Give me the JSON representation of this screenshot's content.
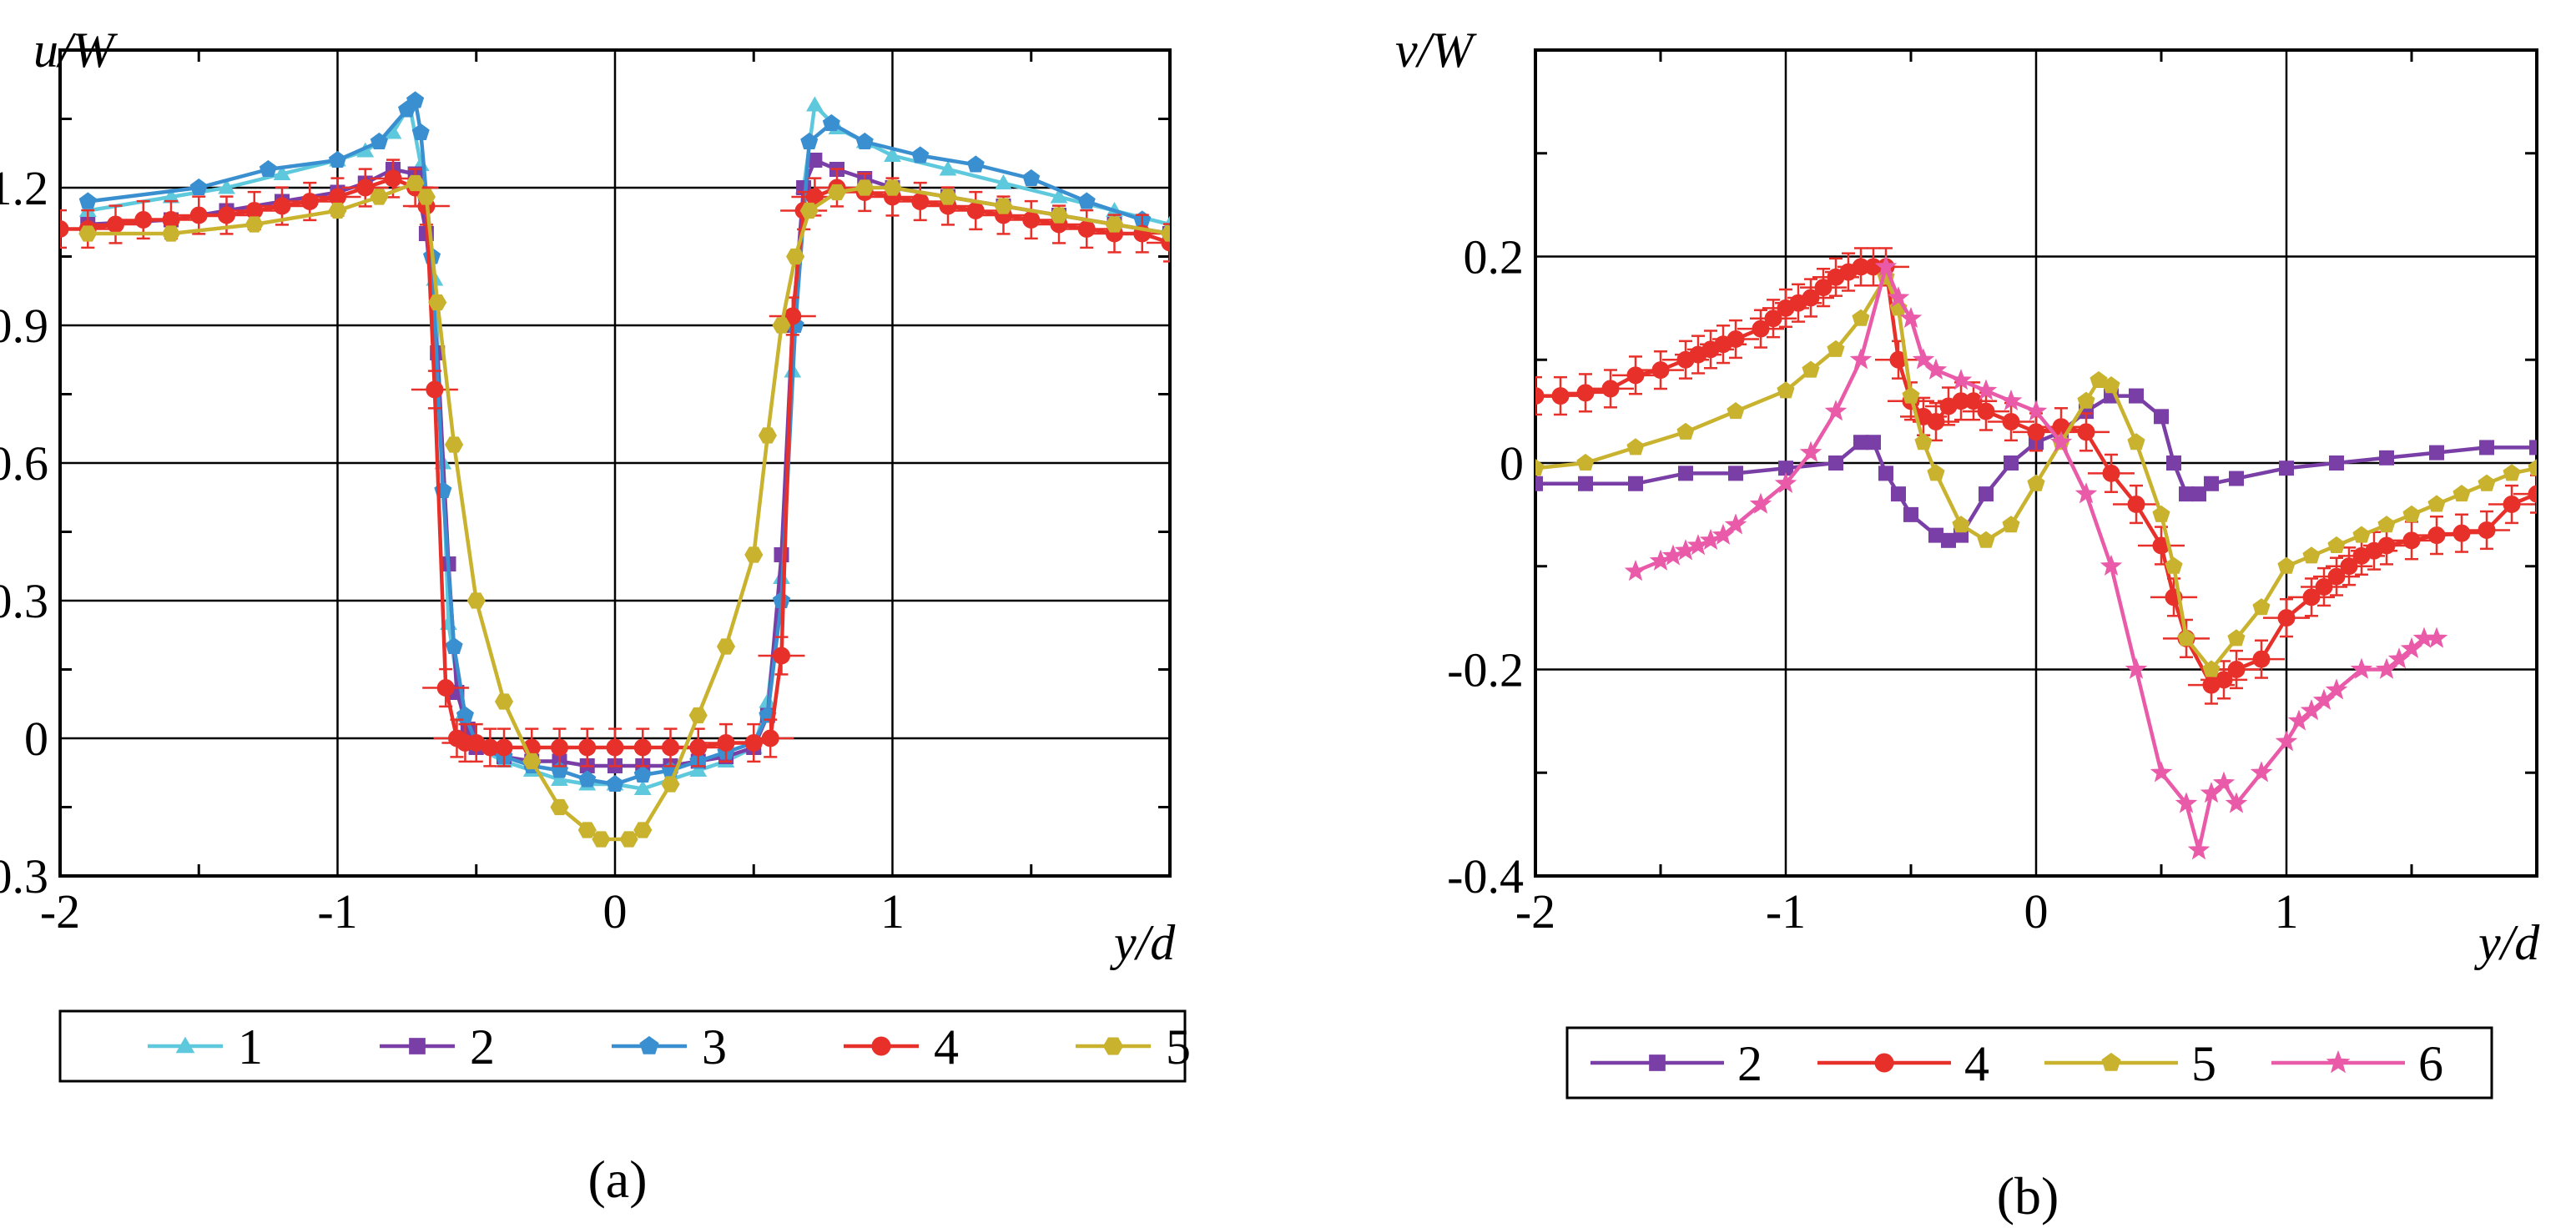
{
  "chart_data": [
    {
      "id": "a",
      "type": "line",
      "panel_label": "(a)",
      "ylabel": "u/W",
      "xlabel": "y/d",
      "xlim": [
        -2,
        2
      ],
      "ylim": [
        -0.3,
        1.5
      ],
      "xticks": [
        -2,
        -1,
        0,
        1
      ],
      "xtick_labels": [
        "-2",
        "-1",
        "0",
        "1"
      ],
      "yticks": [
        -0.3,
        0,
        0.3,
        0.6,
        0.9,
        1.2
      ],
      "ytick_labels": [
        "-0.3",
        "0",
        "0.3",
        "0.6",
        "0.9",
        "1.2"
      ],
      "grid": true,
      "legend_position": "bottom",
      "series": [
        {
          "name": "1",
          "color": "#5ec9dd",
          "marker": "triangle",
          "x": [
            -1.9,
            -1.6,
            -1.4,
            -1.2,
            -1.0,
            -0.9,
            -0.8,
            -0.74,
            -0.7,
            -0.65,
            -0.62,
            -0.6,
            -0.55,
            -0.5,
            -0.4,
            -0.3,
            -0.2,
            -0.1,
            0.0,
            0.1,
            0.2,
            0.3,
            0.4,
            0.5,
            0.55,
            0.6,
            0.64,
            0.68,
            0.72,
            0.8,
            0.9,
            1.0,
            1.2,
            1.4,
            1.6,
            1.8,
            2.0
          ],
          "y": [
            1.15,
            1.18,
            1.2,
            1.23,
            1.26,
            1.28,
            1.32,
            1.38,
            1.25,
            1.0,
            0.6,
            0.25,
            0.05,
            -0.02,
            -0.05,
            -0.07,
            -0.09,
            -0.1,
            -0.1,
            -0.11,
            -0.09,
            -0.07,
            -0.05,
            -0.02,
            0.08,
            0.35,
            0.8,
            1.2,
            1.38,
            1.33,
            1.3,
            1.27,
            1.24,
            1.21,
            1.18,
            1.15,
            1.12
          ]
        },
        {
          "name": "2",
          "color": "#7a3fa6",
          "marker": "square",
          "x": [
            -1.9,
            -1.6,
            -1.4,
            -1.2,
            -1.0,
            -0.9,
            -0.8,
            -0.72,
            -0.68,
            -0.64,
            -0.6,
            -0.57,
            -0.53,
            -0.5,
            -0.4,
            -0.3,
            -0.2,
            -0.1,
            0.0,
            0.1,
            0.2,
            0.3,
            0.4,
            0.5,
            0.55,
            0.6,
            0.64,
            0.68,
            0.72,
            0.8,
            0.9,
            1.0,
            1.2,
            1.4,
            1.6,
            1.8,
            2.0
          ],
          "y": [
            1.12,
            1.13,
            1.15,
            1.17,
            1.19,
            1.21,
            1.24,
            1.23,
            1.1,
            0.84,
            0.38,
            0.1,
            0.02,
            -0.02,
            -0.04,
            -0.05,
            -0.05,
            -0.06,
            -0.06,
            -0.06,
            -0.06,
            -0.05,
            -0.04,
            -0.02,
            0.05,
            0.4,
            0.9,
            1.2,
            1.26,
            1.24,
            1.22,
            1.2,
            1.18,
            1.16,
            1.14,
            1.12,
            1.1
          ]
        },
        {
          "name": "3",
          "color": "#3a8fd0",
          "marker": "pentagon",
          "x": [
            -1.9,
            -1.5,
            -1.25,
            -1.0,
            -0.85,
            -0.75,
            -0.72,
            -0.7,
            -0.66,
            -0.62,
            -0.58,
            -0.54,
            -0.5,
            -0.4,
            -0.3,
            -0.2,
            -0.1,
            0.0,
            0.1,
            0.2,
            0.3,
            0.4,
            0.5,
            0.55,
            0.6,
            0.65,
            0.7,
            0.78,
            0.9,
            1.1,
            1.3,
            1.5,
            1.7,
            1.9
          ],
          "y": [
            1.17,
            1.2,
            1.24,
            1.26,
            1.3,
            1.37,
            1.39,
            1.32,
            1.05,
            0.54,
            0.2,
            0.05,
            -0.01,
            -0.04,
            -0.06,
            -0.07,
            -0.09,
            -0.1,
            -0.08,
            -0.07,
            -0.05,
            -0.03,
            -0.01,
            0.05,
            0.3,
            0.9,
            1.3,
            1.34,
            1.3,
            1.27,
            1.25,
            1.22,
            1.17,
            1.13
          ]
        },
        {
          "name": "4",
          "color": "#e8302a",
          "marker": "circle",
          "error_bars": true,
          "x": [
            -2.0,
            -1.9,
            -1.8,
            -1.7,
            -1.6,
            -1.5,
            -1.4,
            -1.3,
            -1.2,
            -1.1,
            -1.0,
            -0.9,
            -0.8,
            -0.72,
            -0.68,
            -0.65,
            -0.61,
            -0.57,
            -0.54,
            -0.5,
            -0.45,
            -0.4,
            -0.3,
            -0.2,
            -0.1,
            0.0,
            0.1,
            0.2,
            0.3,
            0.4,
            0.5,
            0.56,
            0.6,
            0.64,
            0.68,
            0.72,
            0.8,
            0.9,
            1.0,
            1.1,
            1.2,
            1.3,
            1.4,
            1.5,
            1.6,
            1.7,
            1.8,
            1.9,
            2.0
          ],
          "y": [
            1.11,
            1.11,
            1.12,
            1.13,
            1.13,
            1.14,
            1.14,
            1.15,
            1.16,
            1.17,
            1.18,
            1.2,
            1.22,
            1.2,
            1.16,
            0.76,
            0.11,
            0.0,
            -0.01,
            -0.01,
            -0.02,
            -0.02,
            -0.02,
            -0.02,
            -0.02,
            -0.02,
            -0.02,
            -0.02,
            -0.02,
            -0.01,
            -0.01,
            0.0,
            0.18,
            0.92,
            1.15,
            1.18,
            1.2,
            1.19,
            1.18,
            1.17,
            1.16,
            1.15,
            1.14,
            1.13,
            1.12,
            1.11,
            1.1,
            1.1,
            1.08
          ]
        },
        {
          "name": "5",
          "color": "#c8b22e",
          "marker": "hexagon",
          "x": [
            -1.9,
            -1.6,
            -1.3,
            -1.0,
            -0.85,
            -0.72,
            -0.68,
            -0.64,
            -0.58,
            -0.5,
            -0.4,
            -0.3,
            -0.2,
            -0.1,
            -0.05,
            0.05,
            0.1,
            0.2,
            0.3,
            0.4,
            0.5,
            0.55,
            0.6,
            0.65,
            0.7,
            0.8,
            0.9,
            1.0,
            1.2,
            1.4,
            1.6,
            1.8,
            2.0
          ],
          "y": [
            1.1,
            1.1,
            1.12,
            1.15,
            1.18,
            1.21,
            1.18,
            0.95,
            0.64,
            0.3,
            0.08,
            -0.05,
            -0.15,
            -0.2,
            -0.22,
            -0.22,
            -0.2,
            -0.1,
            0.05,
            0.2,
            0.4,
            0.66,
            0.9,
            1.05,
            1.15,
            1.19,
            1.2,
            1.2,
            1.18,
            1.16,
            1.14,
            1.12,
            1.1
          ]
        }
      ]
    },
    {
      "id": "b",
      "type": "line",
      "panel_label": "(b)",
      "ylabel": "v/W",
      "xlabel": "y/d",
      "xlim": [
        -2,
        2
      ],
      "ylim": [
        -0.4,
        0.4
      ],
      "xticks": [
        -2,
        -1,
        0,
        1
      ],
      "xtick_labels": [
        "-2",
        "-1",
        "0",
        "1"
      ],
      "yticks": [
        -0.4,
        -0.2,
        0,
        0.2
      ],
      "ytick_labels": [
        "-0.4",
        "-0.2",
        "0",
        "0.2"
      ],
      "grid": true,
      "legend_position": "bottom",
      "series": [
        {
          "name": "2",
          "color": "#7a3fa6",
          "marker": "square",
          "x": [
            -2.0,
            -1.8,
            -1.6,
            -1.4,
            -1.2,
            -1.0,
            -0.8,
            -0.7,
            -0.65,
            -0.6,
            -0.55,
            -0.5,
            -0.4,
            -0.35,
            -0.3,
            -0.2,
            -0.1,
            0.0,
            0.1,
            0.2,
            0.3,
            0.4,
            0.5,
            0.55,
            0.6,
            0.65,
            0.7,
            0.8,
            1.0,
            1.2,
            1.4,
            1.6,
            1.8,
            2.0
          ],
          "y": [
            -0.02,
            -0.02,
            -0.02,
            -0.01,
            -0.01,
            -0.005,
            0.0,
            0.02,
            0.02,
            -0.01,
            -0.03,
            -0.05,
            -0.07,
            -0.075,
            -0.07,
            -0.03,
            0.0,
            0.02,
            0.03,
            0.05,
            0.065,
            0.065,
            0.045,
            0.0,
            -0.03,
            -0.03,
            -0.02,
            -0.015,
            -0.005,
            0.0,
            0.005,
            0.01,
            0.015,
            0.015
          ]
        },
        {
          "name": "4",
          "color": "#e8302a",
          "marker": "circle",
          "error_bars": true,
          "x": [
            -2.0,
            -1.9,
            -1.8,
            -1.7,
            -1.6,
            -1.5,
            -1.4,
            -1.35,
            -1.3,
            -1.25,
            -1.2,
            -1.1,
            -1.05,
            -1.0,
            -0.95,
            -0.9,
            -0.85,
            -0.8,
            -0.75,
            -0.7,
            -0.65,
            -0.6,
            -0.55,
            -0.5,
            -0.45,
            -0.4,
            -0.35,
            -0.3,
            -0.25,
            -0.2,
            -0.1,
            0.0,
            0.1,
            0.2,
            0.3,
            0.4,
            0.5,
            0.55,
            0.6,
            0.7,
            0.75,
            0.8,
            0.9,
            1.0,
            1.1,
            1.15,
            1.2,
            1.25,
            1.3,
            1.35,
            1.4,
            1.5,
            1.6,
            1.7,
            1.8,
            1.9,
            2.0
          ],
          "y": [
            0.065,
            0.065,
            0.068,
            0.072,
            0.085,
            0.09,
            0.1,
            0.105,
            0.11,
            0.115,
            0.12,
            0.13,
            0.14,
            0.15,
            0.155,
            0.16,
            0.17,
            0.18,
            0.185,
            0.19,
            0.19,
            0.19,
            0.1,
            0.06,
            0.045,
            0.04,
            0.055,
            0.06,
            0.06,
            0.05,
            0.04,
            0.03,
            0.035,
            0.03,
            -0.01,
            -0.04,
            -0.08,
            -0.13,
            -0.17,
            -0.215,
            -0.21,
            -0.2,
            -0.19,
            -0.15,
            -0.13,
            -0.12,
            -0.11,
            -0.1,
            -0.09,
            -0.085,
            -0.08,
            -0.075,
            -0.07,
            -0.068,
            -0.065,
            -0.04,
            -0.03
          ]
        },
        {
          "name": "5",
          "color": "#c8b22e",
          "marker": "pentagon",
          "x": [
            -2.0,
            -1.8,
            -1.6,
            -1.4,
            -1.2,
            -1.0,
            -0.9,
            -0.8,
            -0.7,
            -0.6,
            -0.55,
            -0.5,
            -0.45,
            -0.4,
            -0.3,
            -0.2,
            -0.1,
            0.0,
            0.1,
            0.2,
            0.25,
            0.3,
            0.4,
            0.5,
            0.55,
            0.6,
            0.7,
            0.8,
            0.9,
            1.0,
            1.1,
            1.2,
            1.3,
            1.4,
            1.5,
            1.6,
            1.7,
            1.8,
            1.9,
            2.0
          ],
          "y": [
            -0.005,
            0.0,
            0.015,
            0.03,
            0.05,
            0.07,
            0.09,
            0.11,
            0.14,
            0.18,
            0.15,
            0.065,
            0.02,
            -0.01,
            -0.06,
            -0.075,
            -0.06,
            -0.02,
            0.02,
            0.06,
            0.08,
            0.075,
            0.02,
            -0.05,
            -0.1,
            -0.17,
            -0.2,
            -0.17,
            -0.14,
            -0.1,
            -0.09,
            -0.08,
            -0.07,
            -0.06,
            -0.05,
            -0.04,
            -0.03,
            -0.02,
            -0.01,
            -0.005
          ]
        },
        {
          "name": "6",
          "color": "#e95aa8",
          "marker": "star",
          "x": [
            -1.6,
            -1.5,
            -1.45,
            -1.4,
            -1.35,
            -1.3,
            -1.25,
            -1.2,
            -1.1,
            -1.0,
            -0.9,
            -0.8,
            -0.7,
            -0.6,
            -0.55,
            -0.5,
            -0.45,
            -0.4,
            -0.3,
            -0.2,
            -0.1,
            0.0,
            0.1,
            0.2,
            0.3,
            0.4,
            0.5,
            0.6,
            0.65,
            0.7,
            0.75,
            0.8,
            0.9,
            1.0,
            1.05,
            1.1,
            1.15,
            1.2,
            1.3,
            1.4,
            1.45,
            1.5,
            1.55,
            1.6
          ],
          "y": [
            -0.105,
            -0.095,
            -0.09,
            -0.085,
            -0.08,
            -0.075,
            -0.07,
            -0.06,
            -0.04,
            -0.02,
            0.01,
            0.05,
            0.1,
            0.19,
            0.16,
            0.14,
            0.1,
            0.09,
            0.08,
            0.07,
            0.06,
            0.05,
            0.02,
            -0.03,
            -0.1,
            -0.2,
            -0.3,
            -0.33,
            -0.375,
            -0.32,
            -0.31,
            -0.33,
            -0.3,
            -0.27,
            -0.25,
            -0.24,
            -0.23,
            -0.22,
            -0.2,
            -0.2,
            -0.19,
            -0.18,
            -0.17,
            -0.17
          ]
        }
      ]
    }
  ]
}
